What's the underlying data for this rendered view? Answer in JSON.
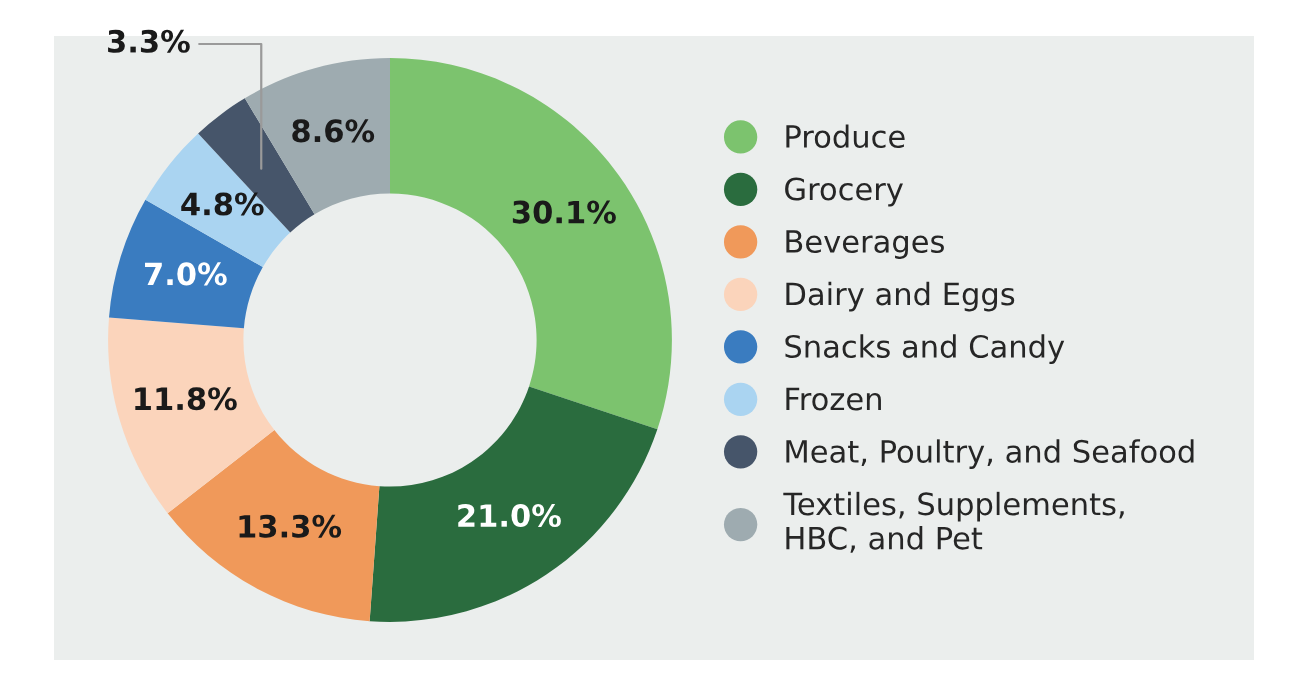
{
  "chart_data": {
    "type": "donut",
    "categories": [
      "Produce",
      "Grocery",
      "Beverages",
      "Dairy and Eggs",
      "Snacks and Candy",
      "Frozen",
      "Meat, Poultry, and Seafood",
      "Textiles, Supplements,\nHBC, and Pet"
    ],
    "values": [
      30.1,
      21.0,
      13.3,
      11.8,
      7.0,
      4.8,
      3.3,
      8.6
    ],
    "value_labels": [
      "30.1%",
      "21.0%",
      "13.3%",
      "11.8%",
      "7.0%",
      "4.8%",
      "3.3%",
      "8.6%"
    ],
    "colors": [
      "#7cc36e",
      "#2a6c3e",
      "#f0995a",
      "#fbd4bb",
      "#3a7cc0",
      "#aad4f1",
      "#46556a",
      "#9eabb0"
    ],
    "legend": "right"
  }
}
